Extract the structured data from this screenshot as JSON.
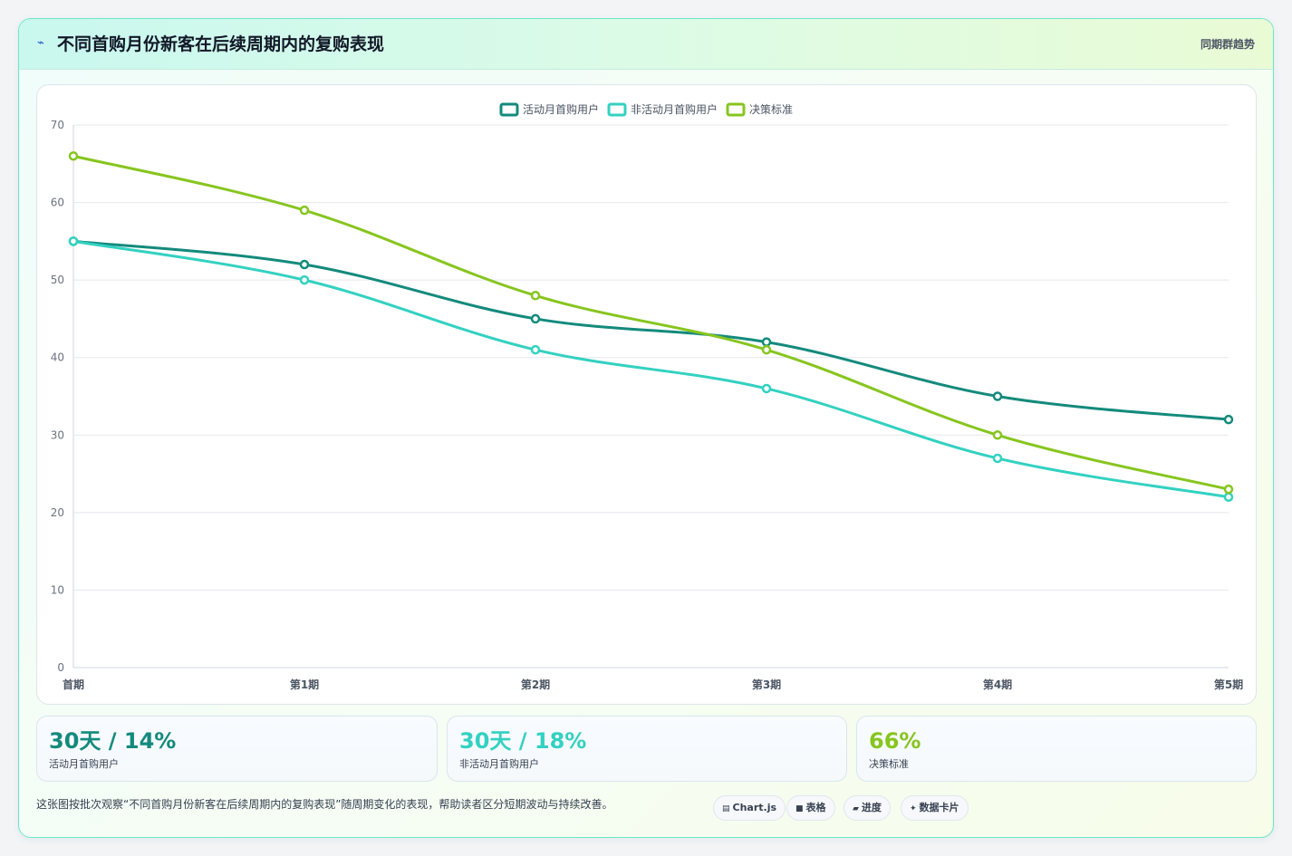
{
  "header": {
    "title": "不同首购月份新客在后续周期内的复购表现",
    "tag": "同期群趋势",
    "icon": "bolt-icon"
  },
  "colors": {
    "series1": "#138a7c",
    "series2": "#33d1c1",
    "series3": "#87c51f"
  },
  "chart_data": {
    "type": "line",
    "x": [
      "首期",
      "第1期",
      "第2期",
      "第3期",
      "第4期",
      "第5期"
    ],
    "ylim": [
      0,
      70
    ],
    "yticks": [
      "0",
      "10",
      "20",
      "30",
      "40",
      "50",
      "60",
      "70"
    ],
    "grid": true,
    "legend": "top-center",
    "series": [
      {
        "name": "活动月首购用户",
        "color": "#138a7c",
        "values": [
          55,
          52,
          45,
          42,
          35,
          32
        ]
      },
      {
        "name": "非活动月首购用户",
        "color": "#33d1c1",
        "values": [
          55,
          50,
          41,
          36,
          27,
          22
        ]
      },
      {
        "name": "决策标准",
        "color": "#87c51f",
        "values": [
          66,
          59,
          48,
          41,
          30,
          23
        ]
      }
    ]
  },
  "stats": [
    {
      "value": "30天 / 14%",
      "label": "活动月首购用户",
      "color": "#138a7c"
    },
    {
      "value": "30天 / 18%",
      "label": "非活动月首购用户",
      "color": "#33d1c1"
    },
    {
      "value": "66%",
      "label": "决策标准",
      "color": "#87c51f"
    }
  ],
  "footnote": "这张图按批次观察“不同首购月份新客在后续周期内的复购表现”随周期变化的表现，帮助读者区分短期波动与持续改善。",
  "chips": [
    {
      "label": "Chart.js",
      "icon": "chart-icon"
    },
    {
      "label": "表格",
      "icon": "table-icon"
    },
    {
      "label": "进度",
      "icon": "progress-icon"
    },
    {
      "label": "数据卡片",
      "icon": "sparkle-icon"
    }
  ]
}
